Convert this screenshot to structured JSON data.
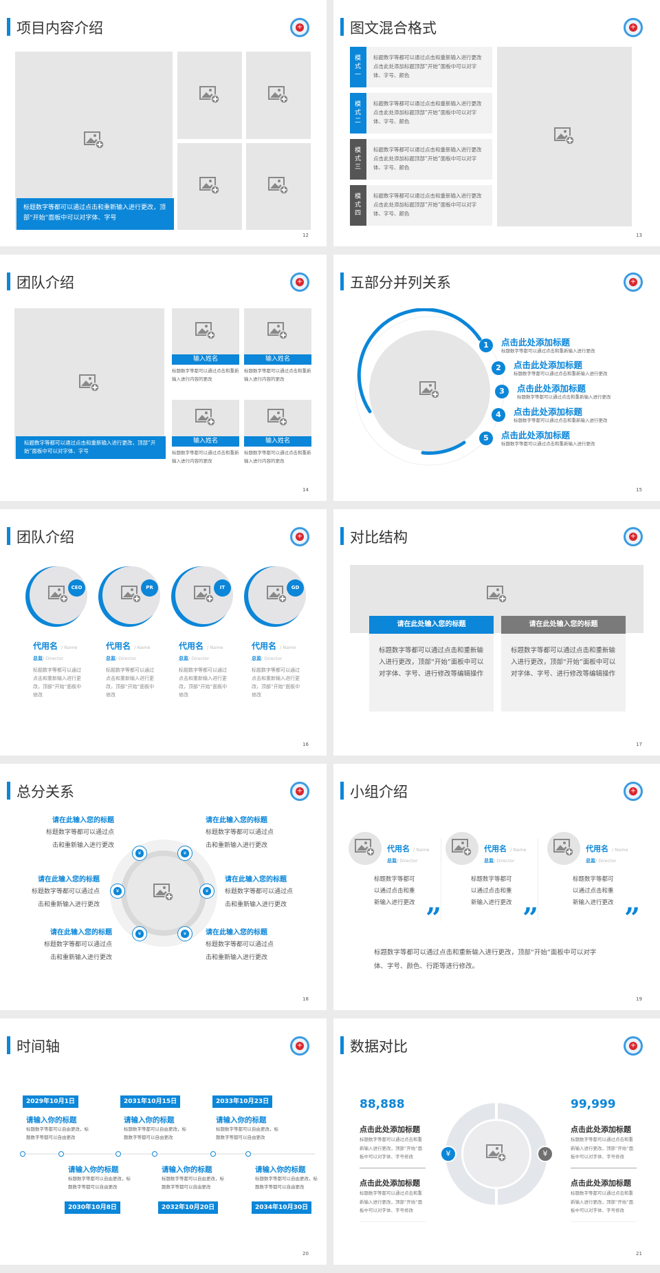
{
  "colors": {
    "accent": "#0b86d8",
    "dark": "#555555",
    "placeholder": "#e6e6e6"
  },
  "slides": {
    "s12": {
      "title": "项目内容介绍",
      "caption": "标题数字等都可以通过点击和重新输入进行更改，顶部“开始”面板中可以对字体、字号",
      "page": "12"
    },
    "s13": {
      "title": "图文混合格式",
      "page": "13",
      "items": [
        {
          "tab": "模式一",
          "text": "标题数字等都可以通过点击和重新输入进行更改 点击此处添加标题顶部“开始”面板中可以对字体、字号、颜色"
        },
        {
          "tab": "模式二",
          "text": "标题数字等都可以通过点击和重新输入进行更改 点击此处添加标题顶部“开始”面板中可以对字体、字号、颜色"
        },
        {
          "tab": "模式三",
          "text": "标题数字等都可以通过点击和重新输入进行更改 点击此处添加标题顶部“开始”面板中可以对字体、字号、颜色"
        },
        {
          "tab": "模式四",
          "text": "标题数字等都可以通过点击和重新输入进行更改 点击此处添加标题顶部“开始”面板中可以对字体、字号、颜色"
        }
      ]
    },
    "s14": {
      "title": "团队介绍",
      "page": "14",
      "caption": "标题数字等都可以通过点击和重新输入进行更改，顶部“开始”面板中可以对字体、字号",
      "cards": [
        {
          "name": "输入姓名",
          "text": "标题数字等都可以通过点击和重新输入进行内容的更改"
        },
        {
          "name": "输入姓名",
          "text": "标题数字等都可以通过点击和重新输入进行内容的更改"
        },
        {
          "name": "输入姓名",
          "text": "标题数字等都可以通过点击和重新输入进行内容的更改"
        },
        {
          "name": "输入姓名",
          "text": "标题数字等都可以通过点击和重新输入进行内容的更改"
        }
      ]
    },
    "s15": {
      "title": "五部分并列关系",
      "page": "15",
      "items": [
        {
          "num": "1",
          "title": "点击此处添加标题",
          "text": "标题数字等都可以通过点击和重新输入进行更改"
        },
        {
          "num": "2",
          "title": "点击此处添加标题",
          "text": "标题数字等都可以通过点击和重新输入进行更改"
        },
        {
          "num": "3",
          "title": "点击此处添加标题",
          "text": "标题数字等都可以通过点击和重新输入进行更改"
        },
        {
          "num": "4",
          "title": "点击此处添加标题",
          "text": "标题数字等都可以通过点击和重新输入进行更改"
        },
        {
          "num": "5",
          "title": "点击此处添加标题",
          "text": "标题数字等都可以通过点击和重新输入进行更改"
        }
      ]
    },
    "s16": {
      "title": "团队介绍",
      "page": "16",
      "members": [
        {
          "badge": "CEO",
          "name": "代用名",
          "name_en": "/ Name",
          "role": "总监",
          "role_en": "/  Director",
          "text": "标题数字等都可以通过点击和重新输入进行更改，顶部“开始”面板中修改"
        },
        {
          "badge": "PR",
          "name": "代用名",
          "name_en": "/ Name",
          "role": "总监",
          "role_en": "/  Director",
          "text": "标题数字等都可以通过点击和重新输入进行更改，顶部“开始”面板中修改"
        },
        {
          "badge": "IT",
          "name": "代用名",
          "name_en": "/ Name",
          "role": "总监",
          "role_en": "/  Director",
          "text": "标题数字等都可以通过点击和重新输入进行更改，顶部“开始”面板中修改"
        },
        {
          "badge": "GD",
          "name": "代用名",
          "name_en": "/ Name",
          "role": "总监",
          "role_en": "/  Director",
          "text": "标题数字等都可以通过点击和重新输入进行更改，顶部“开始”面板中修改"
        }
      ]
    },
    "s17": {
      "title": "对比结构",
      "page": "17",
      "boxes": [
        {
          "head": "请在此处输入您的标题",
          "text": "标题数字等都可以通过点击和重新输入进行更改，顶部“开始”面板中可以对字体、字号、进行修改等编辑操作"
        },
        {
          "head": "请在此处输入您的标题",
          "text": "标题数字等都可以通过点击和重新输入进行更改，顶部“开始”面板中可以对字体、字号、进行修改等编辑操作"
        }
      ]
    },
    "s18": {
      "title": "总分关系",
      "page": "18",
      "items": [
        {
          "title": "请在此输入您的标题",
          "text": "标题数字等都可以通过点击和重新输入进行更改"
        },
        {
          "title": "请在此输入您的标题",
          "text": "标题数字等都可以通过点击和重新输入进行更改"
        },
        {
          "title": "请在此输入您的标题",
          "text": "标题数字等都可以通过点击和重新输入进行更改"
        },
        {
          "title": "请在此输入您的标题",
          "text": "标题数字等都可以通过点击和重新输入进行更改"
        },
        {
          "title": "请在此输入您的标题",
          "text": "标题数字等都可以通过点击和重新输入进行更改"
        },
        {
          "title": "请在此输入您的标题",
          "text": "标题数字等都可以通过点击和重新输入进行更改"
        }
      ]
    },
    "s19": {
      "title": "小组介绍",
      "page": "19",
      "members": [
        {
          "name": "代用名",
          "name_en": "/ Name",
          "role": "总监",
          "role_en": "/  Director",
          "text": "标题数字等都可以通过点击和重新输入进行更改",
          "quote": "”"
        },
        {
          "name": "代用名",
          "name_en": "/ Name",
          "role": "总监",
          "role_en": "/  Director",
          "text": "标题数字等都可以通过点击和重新输入进行更改",
          "quote": "”"
        },
        {
          "name": "代用名",
          "name_en": "/ Name",
          "role": "总监",
          "role_en": "/  Director",
          "text": "标题数字等都可以通过点击和重新输入进行更改",
          "quote": "”"
        }
      ],
      "summary": "标题数字等都可以通过点击和重新输入进行更改，顶部“开始”面板中可以对字体、字号、颜色、行距等进行修改。"
    },
    "s20": {
      "title": "时间轴",
      "page": "20",
      "events": [
        {
          "date": "2029年10月1日",
          "title": "请输入你的标题",
          "text": "标题数字等都可以自由更改，标题数字等都可以自由更改"
        },
        {
          "date": "2030年10月8日",
          "title": "请输入你的标题",
          "text": "标题数字等都可以自由更改，标题数字等都可以自由更改"
        },
        {
          "date": "2031年10月15日",
          "title": "请输入你的标题",
          "text": "标题数字等都可以自由更改，标题数字等都可以自由更改"
        },
        {
          "date": "2032年10月20日",
          "title": "请输入你的标题",
          "text": "标题数字等都可以自由更改，标题数字等都可以自由更改"
        },
        {
          "date": "2033年10月23日",
          "title": "请输入你的标题",
          "text": "标题数字等都可以自由更改，标题数字等都可以自由更改"
        },
        {
          "date": "2034年10月30日",
          "title": "请输入你的标题",
          "text": "标题数字等都可以自由更改，标题数字等都可以自由更改"
        }
      ]
    },
    "s21": {
      "title": "数据对比",
      "page": "21",
      "left": {
        "number": "88,888",
        "items": [
          {
            "title": "点击此处添加标题",
            "text": "标题数字等都可以通过点击和重新输入进行更改，顶部“开始”面板中可以对字体、字号修改"
          },
          {
            "title": "点击此处添加标题",
            "text": "标题数字等都可以通过点击和重新输入进行更改，顶部“开始”面板中可以对字体、字号修改"
          }
        ]
      },
      "right": {
        "number": "99,999",
        "items": [
          {
            "title": "点击此处添加标题",
            "text": "标题数字等都可以通过点击和重新输入进行更改，顶部“开始”面板中可以对字体、字号修改"
          },
          {
            "title": "点击此处添加标题",
            "text": "标题数字等都可以通过点击和重新输入进行更改，顶部“开始”面板中可以对字体、字号修改"
          }
        ]
      }
    }
  }
}
